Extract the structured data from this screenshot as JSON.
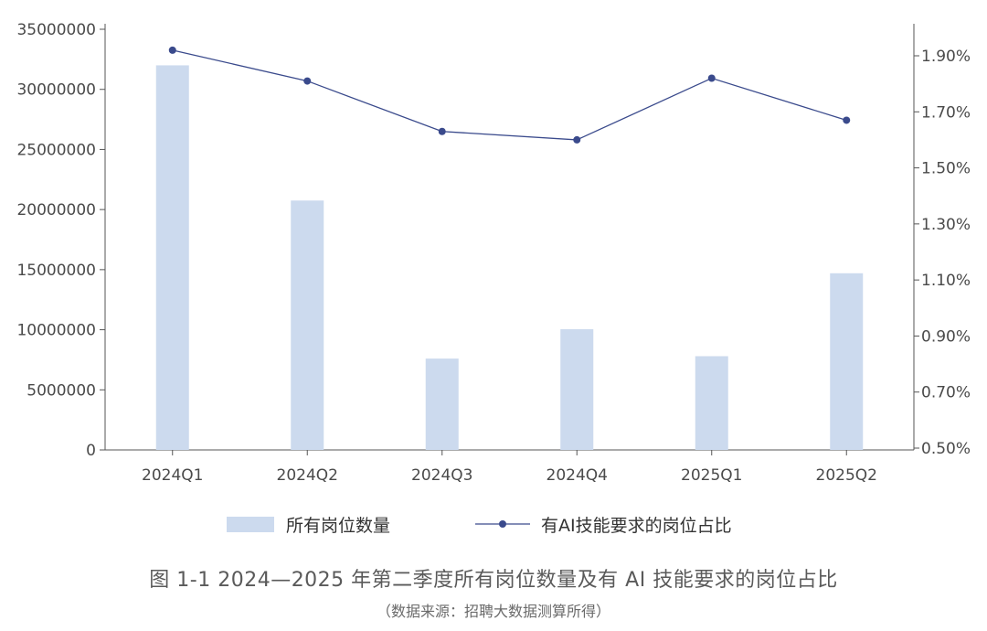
{
  "chart_data": {
    "type": "bar+line",
    "categories": [
      "2024Q1",
      "2024Q2",
      "2024Q3",
      "2024Q4",
      "2025Q1",
      "2025Q2"
    ],
    "series": [
      {
        "name": "所有岗位数量",
        "type": "bar",
        "axis": "left",
        "values": [
          32000000,
          20750000,
          7600000,
          10050000,
          7800000,
          14700000
        ]
      },
      {
        "name": "有AI技能要求的岗位占比",
        "type": "line",
        "axis": "right",
        "values": [
          1.92,
          1.81,
          1.63,
          1.6,
          1.82,
          1.67
        ]
      }
    ],
    "y_left": {
      "lim": [
        0,
        35000000
      ],
      "ticks": [
        "0",
        "5000000",
        "10000000",
        "15000000",
        "20000000",
        "25000000",
        "30000000",
        "35000000"
      ]
    },
    "y_right": {
      "lim": [
        0.5,
        1.9
      ],
      "ticks": [
        "0.50%",
        "0.70%",
        "0.90%",
        "1.10%",
        "1.30%",
        "1.50%",
        "1.70%",
        "1.90%"
      ],
      "tick_values": [
        0.5,
        0.7,
        0.9,
        1.1,
        1.3,
        1.5,
        1.7,
        1.9
      ]
    },
    "grid": false,
    "legend_position": "bottom",
    "colors": {
      "bar": "#ccdaee",
      "line": "#3a4a8c",
      "axis": "#555555"
    }
  },
  "caption": {
    "title": "图 1-1  2024—2025 年第二季度所有岗位数量及有 AI 技能要求的岗位占比",
    "source": "（数据来源：招聘大数据测算所得）"
  }
}
